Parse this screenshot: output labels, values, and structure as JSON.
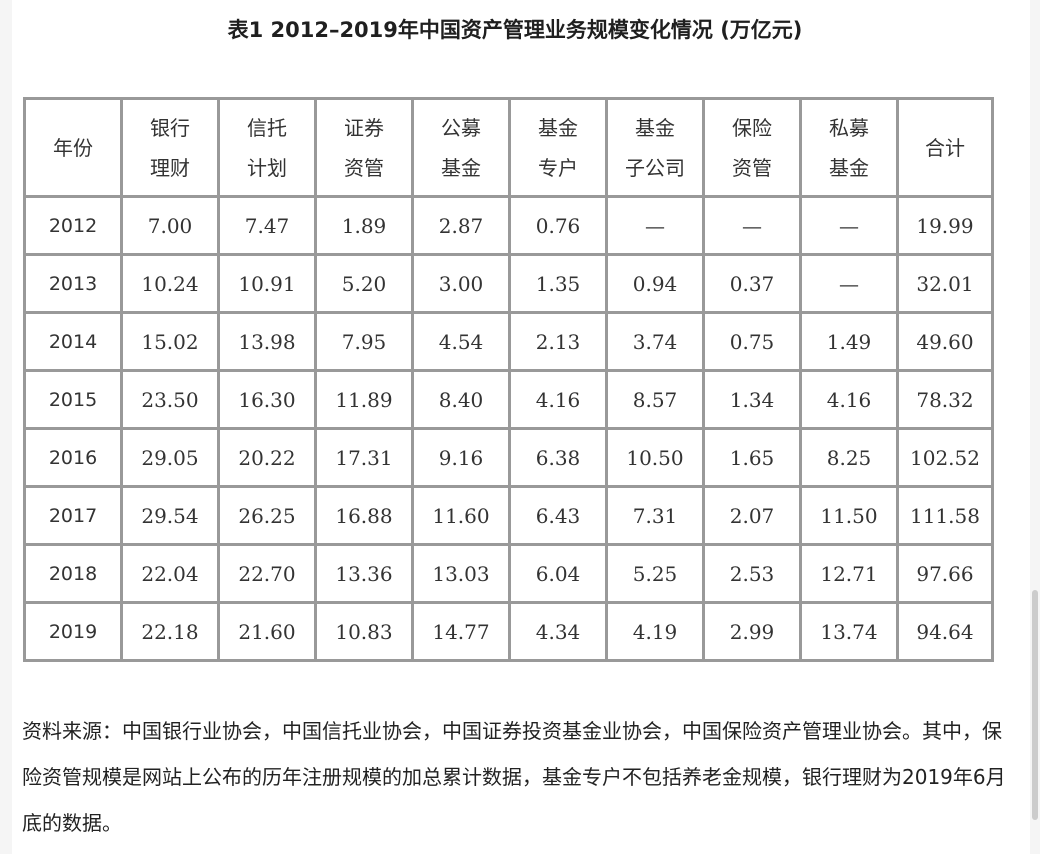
{
  "title": "表1 2012–2019年中国资产管理业务规模变化情况 (万亿元)",
  "table": {
    "headers": [
      [
        "年份"
      ],
      [
        "银行",
        "理财"
      ],
      [
        "信托",
        "计划"
      ],
      [
        "证券",
        "资管"
      ],
      [
        "公募",
        "基金"
      ],
      [
        "基金",
        "专户"
      ],
      [
        "基金",
        "子公司"
      ],
      [
        "保险",
        "资管"
      ],
      [
        "私募",
        "基金"
      ],
      [
        "合计"
      ]
    ],
    "rows": [
      [
        "2012",
        "7.00",
        "7.47",
        "1.89",
        "2.87",
        "0.76",
        "—",
        "—",
        "—",
        "19.99"
      ],
      [
        "2013",
        "10.24",
        "10.91",
        "5.20",
        "3.00",
        "1.35",
        "0.94",
        "0.37",
        "—",
        "32.01"
      ],
      [
        "2014",
        "15.02",
        "13.98",
        "7.95",
        "4.54",
        "2.13",
        "3.74",
        "0.75",
        "1.49",
        "49.60"
      ],
      [
        "2015",
        "23.50",
        "16.30",
        "11.89",
        "8.40",
        "4.16",
        "8.57",
        "1.34",
        "4.16",
        "78.32"
      ],
      [
        "2016",
        "29.05",
        "20.22",
        "17.31",
        "9.16",
        "6.38",
        "10.50",
        "1.65",
        "8.25",
        "102.52"
      ],
      [
        "2017",
        "29.54",
        "26.25",
        "16.88",
        "11.60",
        "6.43",
        "7.31",
        "2.07",
        "11.50",
        "111.58"
      ],
      [
        "2018",
        "22.04",
        "22.70",
        "13.36",
        "13.03",
        "6.04",
        "5.25",
        "2.53",
        "12.71",
        "97.66"
      ],
      [
        "2019",
        "22.18",
        "21.60",
        "10.83",
        "14.77",
        "4.34",
        "4.19",
        "2.99",
        "13.74",
        "94.64"
      ]
    ]
  },
  "note": "资料来源：中国银行业协会，中国信托业协会，中国证券投资基金业协会，中国保险资产管理业协会。其中，保险资管规模是网站上公布的历年注册规模的加总累计数据，基金专户不包括养老金规模，银行理财为2019年6月底的数据。"
}
